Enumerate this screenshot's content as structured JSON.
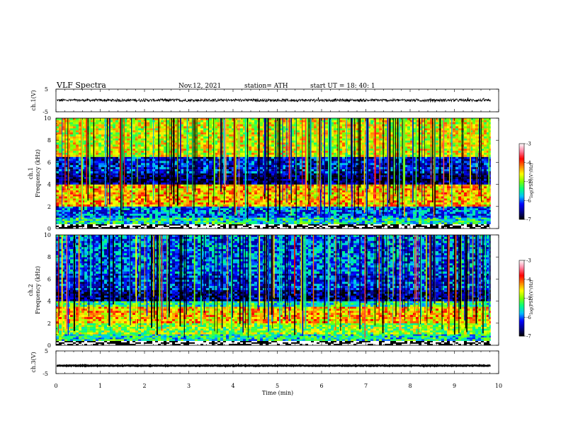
{
  "header": {
    "title": "VLF  Spectra",
    "date": "Nov.12, 2021",
    "station": "station= ATH",
    "start": "start  UT  =   18: 40: 1"
  },
  "chart_data": [
    {
      "type": "line",
      "panel": "ch1-waveform",
      "ylabel": "ch.1(V)",
      "ylim": [
        -5,
        5
      ],
      "y_ticks": [
        "5",
        "-5"
      ],
      "xlim": [
        0,
        10
      ],
      "series": [
        {
          "x_range": [
            0,
            9.82
          ],
          "level": 0.1,
          "noise_amplitude": 0.6,
          "color": "#000000"
        }
      ]
    },
    {
      "type": "heatmap",
      "panel": "ch1-spectrogram",
      "ylabel_top": "ch.1",
      "ylabel": "Frequency  (kHz)",
      "ylim": [
        0,
        10
      ],
      "y_ticks": [
        "0",
        "2",
        "4",
        "6",
        "8",
        "10"
      ],
      "xlim": [
        0,
        10
      ],
      "x_data_end": 9.82,
      "bands": [
        {
          "from": 0.0,
          "to": 0.4,
          "level": -3.5,
          "note": "white/black striped"
        },
        {
          "from": 0.4,
          "to": 1.0,
          "level": -5.5
        },
        {
          "from": 1.0,
          "to": 2.0,
          "level": -6.0
        },
        {
          "from": 2.0,
          "to": 4.0,
          "level": -4.4
        },
        {
          "from": 4.0,
          "to": 5.0,
          "level": -6.7
        },
        {
          "from": 5.0,
          "to": 6.5,
          "level": -6.3
        },
        {
          "from": 6.5,
          "to": 10.0,
          "level": -4.7
        }
      ],
      "colorbar": {
        "range": [
          -7,
          -3
        ],
        "ticks": [
          "-3",
          "-4",
          "-5",
          "-6",
          "-7"
        ],
        "label": "log(PSD)(V²/Hz)",
        "colors": [
          "#000000",
          "#00008b",
          "#0000ff",
          "#00bfff",
          "#00ff80",
          "#7fff00",
          "#ffff00",
          "#ff8000",
          "#ff0000",
          "#ff80a0",
          "#ffffff"
        ]
      }
    },
    {
      "type": "heatmap",
      "panel": "ch2-spectrogram",
      "ylabel_top": "ch.2",
      "ylabel": "Frequency  (kHz)",
      "ylim": [
        0,
        10
      ],
      "y_ticks": [
        "0",
        "2",
        "4",
        "6",
        "8",
        "10"
      ],
      "xlim": [
        0,
        10
      ],
      "x_data_end": 9.82,
      "bands": [
        {
          "from": 0.0,
          "to": 0.4,
          "level": -3.5,
          "note": "white/black striped"
        },
        {
          "from": 0.4,
          "to": 1.0,
          "level": -5.5
        },
        {
          "from": 1.0,
          "to": 2.0,
          "level": -5.0
        },
        {
          "from": 2.0,
          "to": 3.5,
          "level": -4.4
        },
        {
          "from": 3.5,
          "to": 4.0,
          "level": -5.4
        },
        {
          "from": 4.0,
          "to": 5.0,
          "level": -6.6
        },
        {
          "from": 5.0,
          "to": 6.5,
          "level": -6.2
        },
        {
          "from": 6.5,
          "to": 10.0,
          "level": -6.0
        }
      ],
      "colorbar": {
        "range": [
          -7,
          -3
        ],
        "ticks": [
          "-3",
          "-4",
          "-5",
          "-6",
          "-7"
        ],
        "label": "log(PSD)(V²/Hz)",
        "colors": [
          "#000000",
          "#00008b",
          "#0000ff",
          "#00bfff",
          "#00ff80",
          "#7fff00",
          "#ffff00",
          "#ff8000",
          "#ff0000",
          "#ff80a0",
          "#ffffff"
        ]
      }
    },
    {
      "type": "line",
      "panel": "ch3-waveform",
      "ylabel": "ch.3(V)",
      "ylim": [
        -5,
        5
      ],
      "y_ticks": [
        "5",
        "-5"
      ],
      "xlim": [
        0,
        10
      ],
      "xlabel": "Time  (min)",
      "x_ticks": [
        "0",
        "1",
        "2",
        "3",
        "4",
        "5",
        "6",
        "7",
        "8",
        "9",
        "10"
      ],
      "series": [
        {
          "x_range": [
            0,
            9.82
          ],
          "level": -1.5,
          "noise_amplitude": 0.15,
          "color": "#000000"
        }
      ]
    }
  ]
}
